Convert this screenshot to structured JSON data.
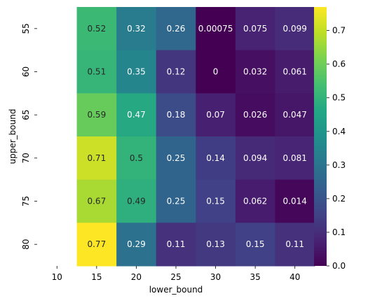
{
  "chart_data": {
    "type": "heatmap",
    "title": "",
    "xlabel": "lower_bound",
    "ylabel": "upper_bound",
    "x_ticks": [
      "10",
      "15",
      "20",
      "25",
      "30",
      "35",
      "40"
    ],
    "y_ticks": [
      "55",
      "60",
      "65",
      "70",
      "75",
      "80"
    ],
    "columns": [
      "15",
      "20",
      "25",
      "30",
      "35",
      "40"
    ],
    "rows": [
      "55",
      "60",
      "65",
      "70",
      "75",
      "80"
    ],
    "values": [
      [
        0.52,
        0.32,
        0.26,
        0.00075,
        0.075,
        0.099
      ],
      [
        0.51,
        0.35,
        0.12,
        0,
        0.032,
        0.061
      ],
      [
        0.59,
        0.47,
        0.18,
        0.07,
        0.026,
        0.047
      ],
      [
        0.71,
        0.5,
        0.25,
        0.14,
        0.094,
        0.081
      ],
      [
        0.67,
        0.49,
        0.25,
        0.15,
        0.062,
        0.014
      ],
      [
        0.77,
        0.29,
        0.11,
        0.13,
        0.15,
        0.11
      ]
    ],
    "annotations": [
      [
        "0.52",
        "0.32",
        "0.26",
        "0.00075",
        "0.075",
        "0.099"
      ],
      [
        "0.51",
        "0.35",
        "0.12",
        "0",
        "0.032",
        "0.061"
      ],
      [
        "0.59",
        "0.47",
        "0.18",
        "0.07",
        "0.026",
        "0.047"
      ],
      [
        "0.71",
        "0.5",
        "0.25",
        "0.14",
        "0.094",
        "0.081"
      ],
      [
        "0.67",
        "0.49",
        "0.25",
        "0.15",
        "0.062",
        "0.014"
      ],
      [
        "0.77",
        "0.29",
        "0.11",
        "0.13",
        "0.15",
        "0.11"
      ]
    ],
    "colormap": "viridis",
    "vmin": 0,
    "vmax": 0.77,
    "colorbar": {
      "ticks": [
        "0.0",
        "0.1",
        "0.2",
        "0.3",
        "0.4",
        "0.5",
        "0.6",
        "0.7"
      ],
      "tick_values": [
        0,
        0.1,
        0.2,
        0.3,
        0.4,
        0.5,
        0.6,
        0.7
      ]
    }
  }
}
